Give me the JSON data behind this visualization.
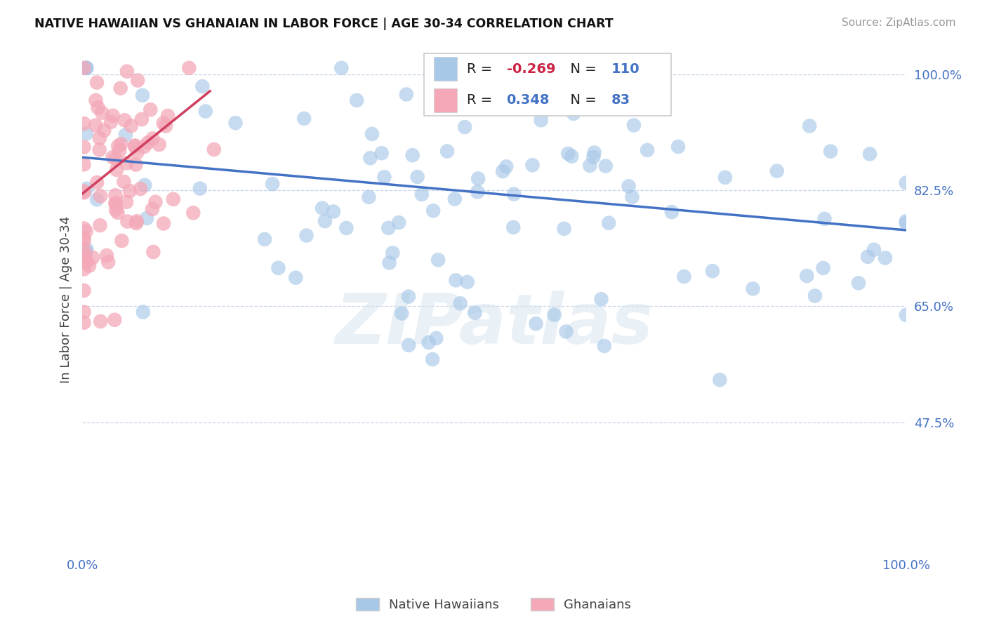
{
  "title": "NATIVE HAWAIIAN VS GHANAIAN IN LABOR FORCE | AGE 30-34 CORRELATION CHART",
  "source": "Source: ZipAtlas.com",
  "ylabel": "In Labor Force | Age 30-34",
  "legend_blue_label": "Native Hawaiians",
  "legend_pink_label": "Ghanaians",
  "R_blue": -0.269,
  "N_blue": 110,
  "R_pink": 0.348,
  "N_pink": 83,
  "blue_color": "#a8c8e8",
  "pink_color": "#f4a8b8",
  "trendline_blue": "#4472c4",
  "trendline_pink": "#d04060",
  "watermark": "ZIPatlas",
  "xmin": 0.0,
  "xmax": 1.0,
  "ymin": 0.28,
  "ymax": 1.04,
  "yticks": [
    0.475,
    0.65,
    0.825,
    1.0
  ],
  "ytick_labels": [
    "47.5%",
    "65.0%",
    "82.5%",
    "100.0%"
  ],
  "xtick_labels": [
    "0.0%",
    "100.0%"
  ],
  "blue_trendline_x": [
    0.0,
    1.0
  ],
  "blue_trendline_y": [
    0.875,
    0.765
  ],
  "pink_trendline_x": [
    0.0,
    0.155
  ],
  "pink_trendline_y": [
    0.82,
    0.975
  ]
}
